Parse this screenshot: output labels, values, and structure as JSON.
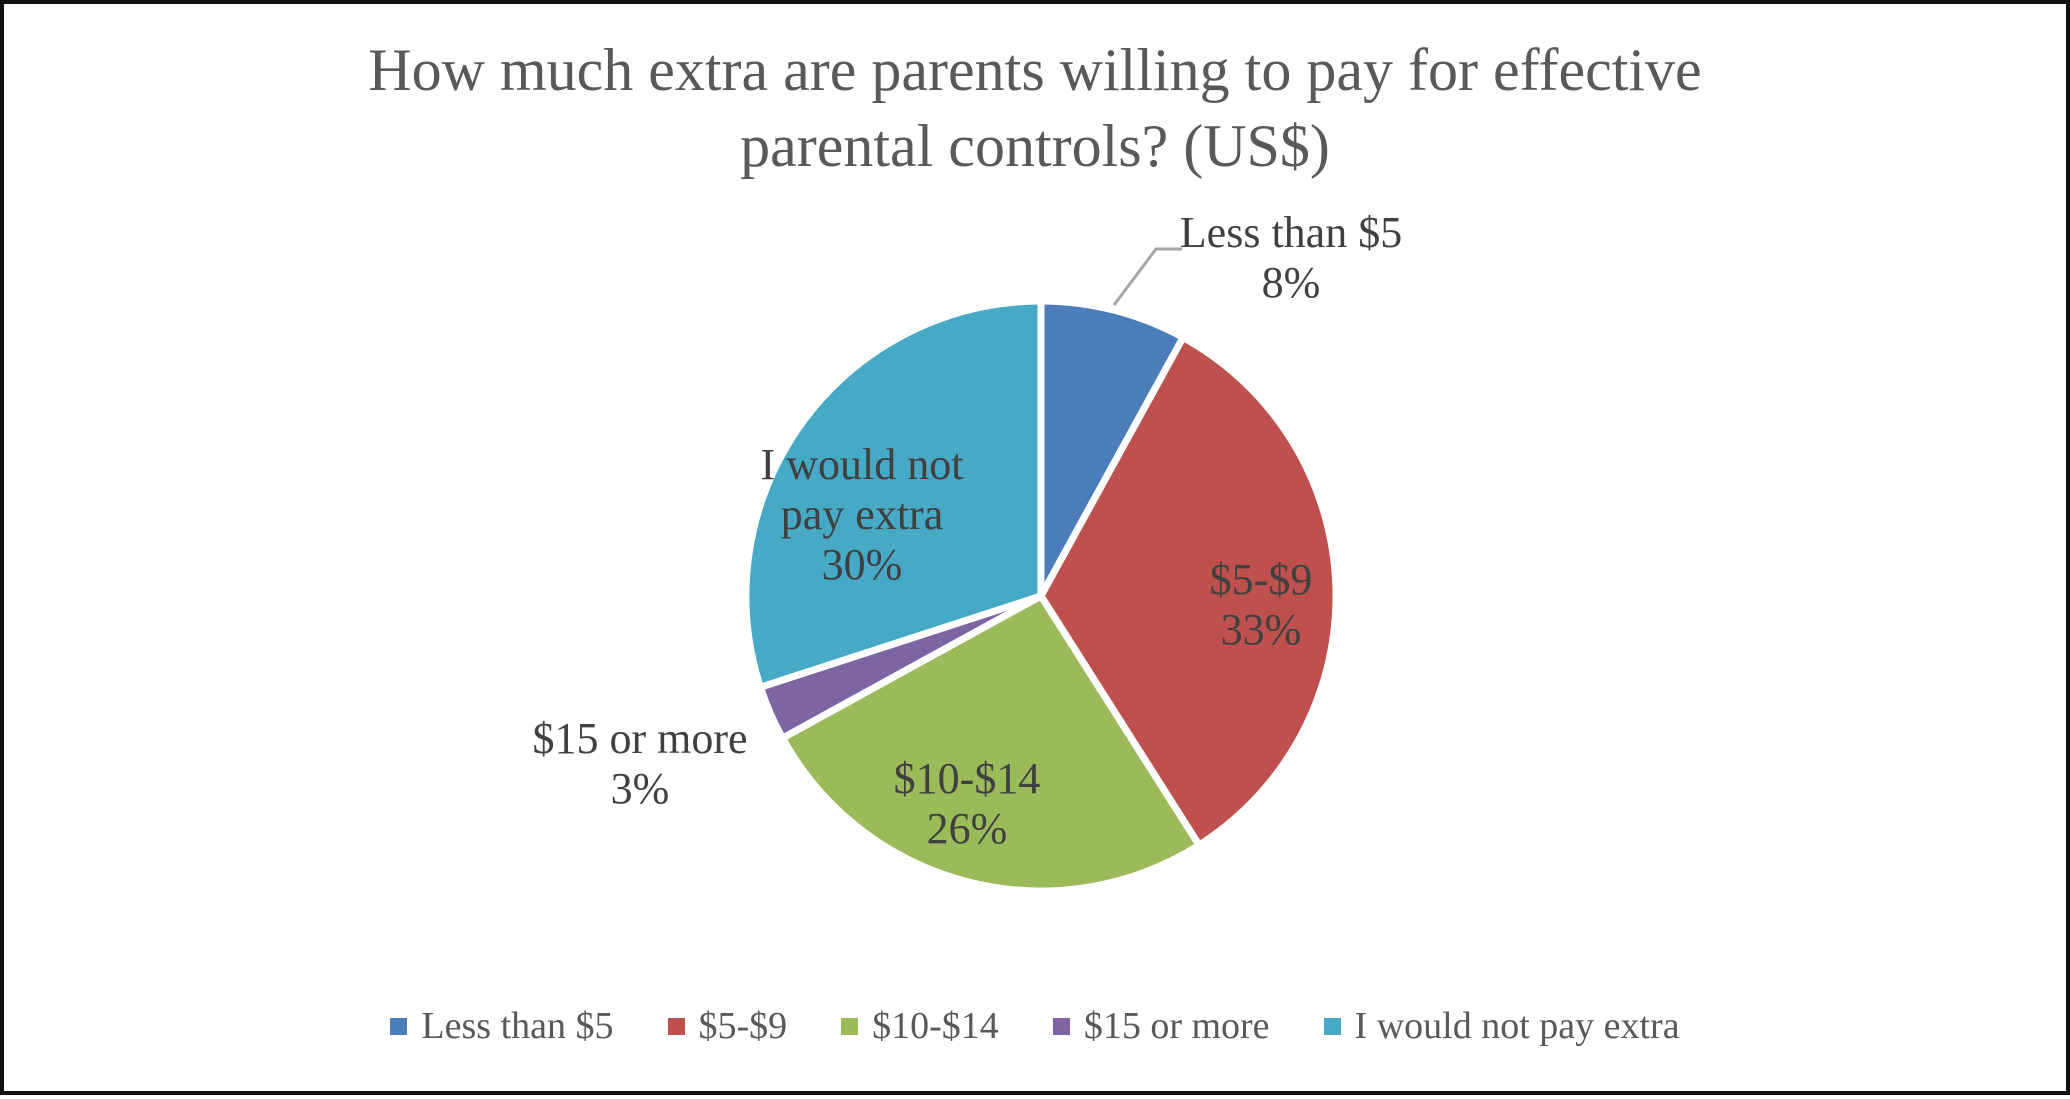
{
  "title": {
    "line1": "How much extra are parents willing to pay for effective",
    "line2": "parental controls? (US$)"
  },
  "chart_data": {
    "type": "pie",
    "title": "How much extra are parents willing to pay for effective parental controls? (US$)",
    "categories": [
      "Less than $5",
      "$5-$9",
      "$10-$14",
      "$15 or more",
      "I would not pay extra"
    ],
    "values": [
      8,
      33,
      26,
      3,
      30
    ],
    "value_unit": "percent",
    "start_angle_deg": 0,
    "direction": "clockwise",
    "legend_position": "bottom",
    "slice_separator_color": "#ffffff",
    "label_text_color": "#404040",
    "title_text_color": "#595959",
    "leader_line_color": "#a6a6a6",
    "slices": [
      {
        "label": "Less than $5",
        "pct": 8,
        "color": "#4c7dbb",
        "label_lines": [
          "Less than $5",
          "8%"
        ],
        "label_placement": "outside-with-leader"
      },
      {
        "label": "$5-$9",
        "pct": 33,
        "color": "#be504e",
        "label_lines": [
          "$5-$9",
          "33%"
        ],
        "label_placement": "inside"
      },
      {
        "label": "$10-$14",
        "pct": 26,
        "color": "#9bba59",
        "label_lines": [
          "$10-$14",
          "26%"
        ],
        "label_placement": "inside"
      },
      {
        "label": "$15 or more",
        "pct": 3,
        "color": "#7f64a3",
        "label_lines": [
          "$15 or more",
          "3%"
        ],
        "label_placement": "outside"
      },
      {
        "label": "I would not pay extra",
        "pct": 30,
        "color": "#46a9c6",
        "label_lines": [
          "I would not",
          "pay extra",
          "30%"
        ],
        "label_placement": "inside"
      }
    ]
  },
  "legend": {
    "items": [
      {
        "label": "Less than $5"
      },
      {
        "label": "$5-$9"
      },
      {
        "label": "$10-$14"
      },
      {
        "label": "$15 or more"
      },
      {
        "label": "I would not pay extra"
      }
    ]
  }
}
